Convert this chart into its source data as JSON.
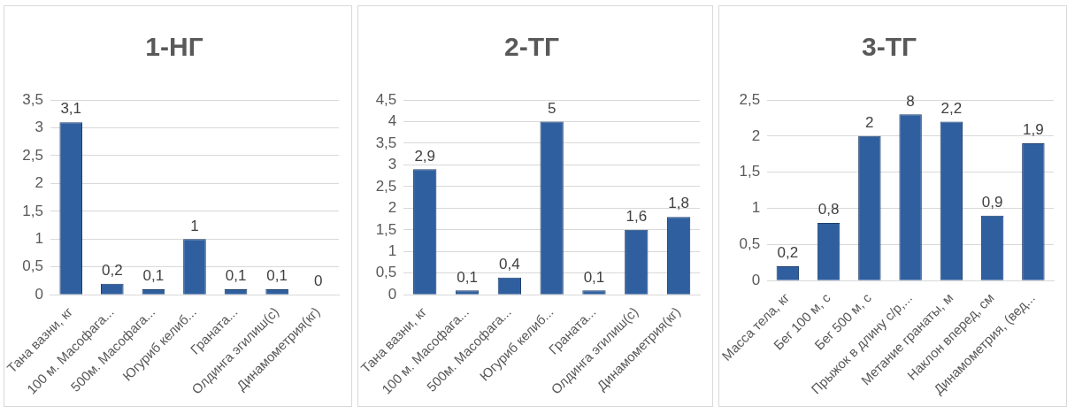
{
  "chart_data": [
    {
      "type": "bar",
      "title": "1-НГ",
      "categories": [
        "Тана вазни, кг",
        "100 м. Масофага...",
        "500м. Масофага...",
        "Югуриб келиб...",
        "Граната...",
        "Олдинга эгилиш(с)",
        "Динамометрия(кг)"
      ],
      "values": [
        3.1,
        0.2,
        0.1,
        1,
        0.1,
        0.1,
        0
      ],
      "color": "#2f5f9e",
      "value_labels": [
        "3,1",
        "0,2",
        "0,1",
        "1",
        "0,1",
        "0,1",
        "0"
      ],
      "ylim": [
        0,
        3.5
      ],
      "yticks": [
        0,
        {
          "value": 0.5,
          "label": "0,5"
        },
        1,
        {
          "value": 1.5,
          "label": "1,5"
        },
        2,
        {
          "value": 2.5,
          "label": "2,5"
        },
        3,
        {
          "value": 3.5,
          "label": "3,5"
        }
      ],
      "grid": "y",
      "legend": false
    },
    {
      "type": "bar",
      "title": "2-ТГ",
      "categories": [
        "Тана вазни, кг",
        "100 м. Масофага...",
        "500м. Масофага...",
        "Югуриб келиб...",
        "Граната...",
        "Олдинга эгилиш(с)",
        "Динамометрия(кг)"
      ],
      "values": [
        2.9,
        0.1,
        0.4,
        4,
        0.1,
        1.5,
        1.8
      ],
      "color": "#2f5f9e",
      "value_labels": [
        "2,9",
        "0,1",
        "0,4",
        null,
        "0,1",
        null,
        "1,8"
      ],
      "annotations": [
        "5",
        "1,6"
      ],
      "ylim": [
        0,
        4.5
      ],
      "yticks": [
        0,
        {
          "value": 0.5,
          "label": "0,5"
        },
        1,
        {
          "value": 1.5,
          "label": "1,5"
        },
        2,
        {
          "value": 2.5,
          "label": "2,5"
        },
        3,
        {
          "value": 3.5,
          "label": "3,5"
        },
        4,
        {
          "value": 4.5,
          "label": "4,5"
        }
      ],
      "grid": "y",
      "legend": false
    },
    {
      "type": "bar",
      "title": "3-ТГ",
      "categories": [
        "Масса тела, кг",
        "Бег 100 м, с",
        "Бег 500 м, с",
        "Прыжок в длину с/р,...",
        "Метание гранаты, м",
        "Наклон вперед, см",
        "Динамометрия, (вед..."
      ],
      "values": [
        0.2,
        0.8,
        2,
        2.3,
        2.2,
        0.9,
        1.9
      ],
      "color": "#2f5f9e",
      "value_labels": [
        "0,2",
        "0,8",
        "2",
        null,
        "2,2",
        "0,9",
        "1,9"
      ],
      "annotations": [
        "8"
      ],
      "ylim": [
        0,
        2.5
      ],
      "yticks": [
        0,
        {
          "value": 0.5,
          "label": "0,5"
        },
        1,
        {
          "value": 1.5,
          "label": "1,5"
        },
        2,
        {
          "value": 2.5,
          "label": "2,5"
        }
      ],
      "grid": "y",
      "legend": false
    }
  ]
}
